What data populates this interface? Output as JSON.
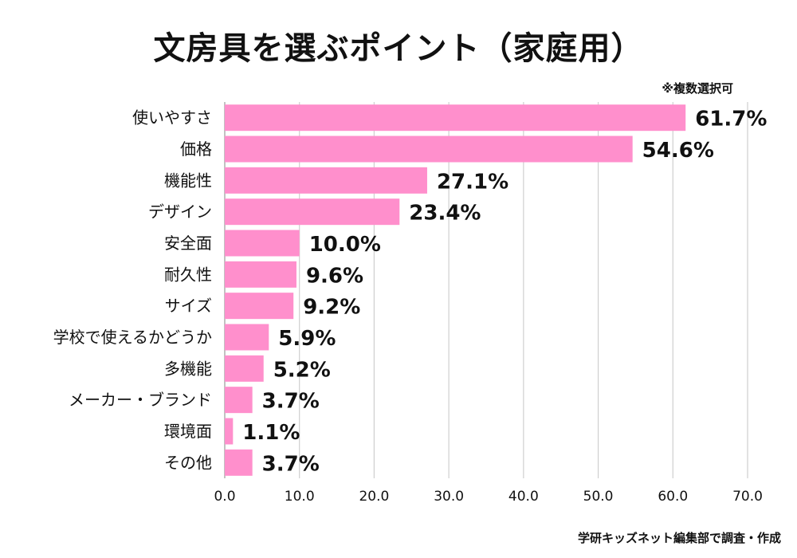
{
  "chart_data": {
    "type": "bar",
    "orientation": "horizontal",
    "title": "文房具を選ぶポイント（家庭用）",
    "note": "※複数選択可",
    "source": "学研キッズネット編集部で調査・作成",
    "categories": [
      "使いやすさ",
      "価格",
      "機能性",
      "デザイン",
      "安全面",
      "耐久性",
      "サイズ",
      "学校で使えるかどうか",
      "多機能",
      "メーカー・ブランド",
      "環境面",
      "その他"
    ],
    "values": [
      61.7,
      54.6,
      27.1,
      23.4,
      10.0,
      9.6,
      9.2,
      5.9,
      5.2,
      3.7,
      1.1,
      3.7
    ],
    "value_labels": [
      "61.7%",
      "54.6%",
      "27.1%",
      "23.4%",
      "10.0%",
      "9.6%",
      "9.2%",
      "5.9%",
      "5.2%",
      "3.7%",
      "1.1%",
      "3.7%"
    ],
    "xlim": [
      0,
      70
    ],
    "xticks": [
      0,
      10,
      20,
      30,
      40,
      50,
      60,
      70
    ],
    "xtick_labels": [
      "0.0",
      "10.0",
      "20.0",
      "30.0",
      "40.0",
      "50.0",
      "60.0",
      "70.0"
    ],
    "bar_color": "#ff8fcc",
    "grid": true
  }
}
